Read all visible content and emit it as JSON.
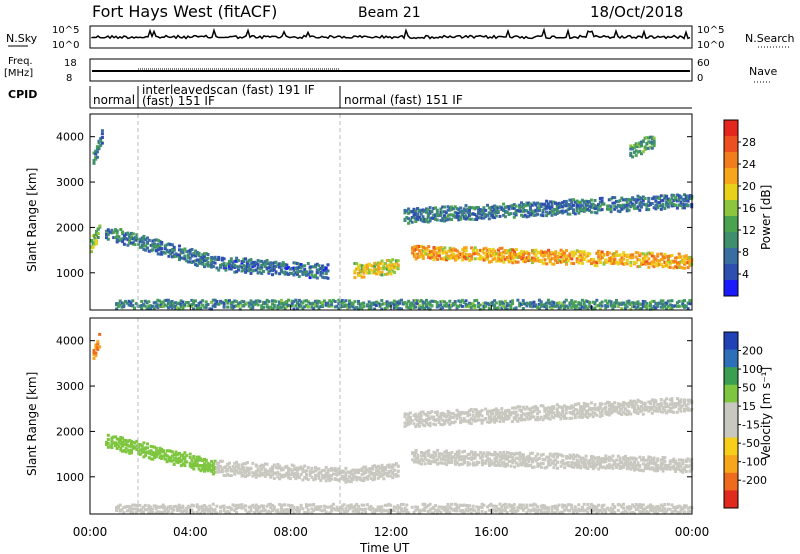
{
  "header": {
    "title": "Fort Hays West (fitACF)",
    "beam": "Beam 21",
    "date": "18/Oct/2018"
  },
  "noise_panel": {
    "left_label": "N.Sky",
    "right_label": "N.Search",
    "left_ticks": [
      "10^5",
      "10^0"
    ],
    "right_ticks": [
      "10^5",
      "10^0"
    ]
  },
  "freq_panel": {
    "left_label_1": "Freq.",
    "left_label_2": "[MHz]",
    "right_label": "Nave",
    "left_ticks": [
      "18",
      "8"
    ],
    "right_ticks": [
      "60",
      "0"
    ]
  },
  "cpid": {
    "label": "CPID",
    "segments": [
      {
        "start_h": 0.0,
        "end_h": 1.9,
        "line1": "normal",
        "line2": ""
      },
      {
        "start_h": 1.9,
        "end_h": 10.0,
        "line1": "interleavedscan (fast) 191 IF",
        "line2": "(fast) 151 IF"
      },
      {
        "start_h": 10.0,
        "end_h": 24.0,
        "line1": "normal (fast) 151 IF",
        "line2": ""
      }
    ]
  },
  "power_panel": {
    "ylabel": "Slant Range [km]",
    "yticks": [
      1000,
      2000,
      3000,
      4000
    ],
    "colorbar_label": "Power [dB]",
    "colorbar_ticks": [
      4,
      8,
      12,
      16,
      20,
      24,
      28
    ],
    "colors": [
      "#1a1aff",
      "#2e4fb0",
      "#3a6ea0",
      "#3f8f6e",
      "#4aa34f",
      "#8cc63f",
      "#e9d11a",
      "#f7a51b",
      "#f27d1d",
      "#ec5020",
      "#e5261e"
    ]
  },
  "velocity_panel": {
    "ylabel": "Slant Range [km]",
    "yticks": [
      1000,
      2000,
      3000,
      4000
    ],
    "colorbar_label": "Velocity [m s⁻¹]",
    "colorbar_ticks": [
      200,
      100,
      50,
      15,
      -15,
      -50,
      -100,
      -200
    ],
    "colors": [
      "#2142b6",
      "#2e6fba",
      "#3aa04f",
      "#7ec63f",
      "#c8c8c0",
      "#c8c8c0",
      "#f7cf1b",
      "#f7a51b",
      "#ee6a1c",
      "#e02a1d"
    ]
  },
  "x_axis": {
    "label": "Time UT",
    "ticks": [
      "00:00",
      "04:00",
      "08:00",
      "12:00",
      "16:00",
      "20:00",
      "00:00"
    ]
  },
  "chart_data": {
    "type": "heatmap",
    "title": "Fort Hays West (fitACF)",
    "subtitle": "Beam 21",
    "date": "18/Oct/2018",
    "xlabel": "Time UT",
    "x_range_hours": [
      0,
      24
    ],
    "ylabel": "Slant Range [km]",
    "y_range_km": [
      180,
      4500
    ],
    "vertical_markers_hours": [
      1.9,
      10.0
    ],
    "panels": [
      {
        "name": "Power",
        "colorbar_label": "Power [dB]",
        "colorbar_range": [
          0,
          32
        ],
        "colorbar_ticks": [
          4,
          8,
          12,
          16,
          20,
          24,
          28
        ],
        "echo_bands": [
          {
            "t_start_h": 0.0,
            "t_end_h": 0.4,
            "range_start_km": 1600,
            "range_end_km": 2000,
            "power_db": 14
          },
          {
            "t_start_h": 0.1,
            "t_end_h": 0.5,
            "range_start_km": 3500,
            "range_end_km": 4100,
            "power_db": 10
          },
          {
            "t_start_h": 0.6,
            "t_end_h": 5.0,
            "range_start_km": 1900,
            "range_end_km": 1200,
            "power_db": 8
          },
          {
            "t_start_h": 5.0,
            "t_end_h": 9.5,
            "range_start_km": 1200,
            "range_end_km": 1020,
            "power_db": 7
          },
          {
            "t_start_h": 10.5,
            "t_end_h": 12.3,
            "range_start_km": 1050,
            "range_end_km": 1150,
            "power_db": 18
          },
          {
            "t_start_h": 12.8,
            "t_end_h": 24.0,
            "range_start_km": 1450,
            "range_end_km": 1250,
            "power_db": 22
          },
          {
            "t_start_h": 12.5,
            "t_end_h": 24.0,
            "range_start_km": 2250,
            "range_end_km": 2600,
            "power_db": 8
          },
          {
            "t_start_h": 21.5,
            "t_end_h": 22.5,
            "range_start_km": 3700,
            "range_end_km": 3900,
            "power_db": 12
          },
          {
            "t_start_h": 1.0,
            "t_end_h": 24.0,
            "range_start_km": 300,
            "range_end_km": 300,
            "power_db": 10
          }
        ]
      },
      {
        "name": "Velocity",
        "colorbar_label": "Velocity [m s⁻¹]",
        "colorbar_ticks": [
          200,
          100,
          50,
          15,
          -15,
          -50,
          -100,
          -200
        ],
        "echo_bands": [
          {
            "t_start_h": 0.6,
            "t_end_h": 5.0,
            "range_start_km": 1800,
            "range_end_km": 1200,
            "velocity_ms": 40
          },
          {
            "t_start_h": 5.0,
            "t_end_h": 10.5,
            "range_start_km": 1200,
            "range_end_km": 1020,
            "velocity_ms": 0
          },
          {
            "t_start_h": 10.5,
            "t_end_h": 12.3,
            "range_start_km": 1050,
            "range_end_km": 1150,
            "velocity_ms": -40
          },
          {
            "t_start_h": 12.8,
            "t_end_h": 24.0,
            "range_start_km": 1450,
            "range_end_km": 1250,
            "velocity_ms": 0
          },
          {
            "t_start_h": 12.5,
            "t_end_h": 24.0,
            "range_start_km": 2250,
            "range_end_km": 2600,
            "velocity_ms": -20
          },
          {
            "t_start_h": 0.1,
            "t_end_h": 0.4,
            "range_start_km": 3700,
            "range_end_km": 4100,
            "velocity_ms": -200
          },
          {
            "t_start_h": 1.0,
            "t_end_h": 24.0,
            "range_start_km": 300,
            "range_end_km": 300,
            "velocity_ms": -30
          }
        ]
      }
    ]
  }
}
